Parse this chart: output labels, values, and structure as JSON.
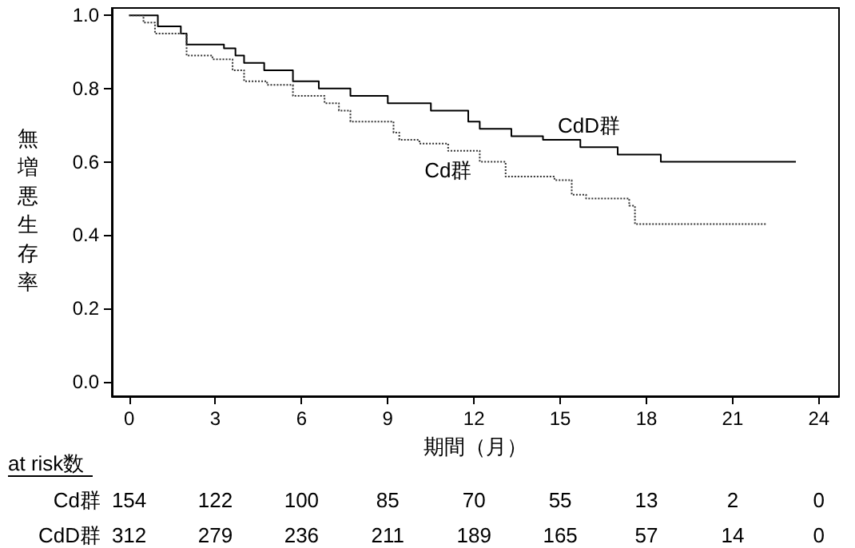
{
  "chart_data": {
    "type": "step",
    "xlabel": "期間（月）",
    "ylabel": "無増悪生存率",
    "xlim": [
      -0.6,
      24.7
    ],
    "ylim": [
      -0.04,
      1.02
    ],
    "xticks": [
      0,
      3,
      6,
      9,
      12,
      15,
      18,
      21,
      24
    ],
    "yticks": [
      {
        "value": 0,
        "label": "0.0"
      },
      {
        "value": 0.2,
        "label": "0.2"
      },
      {
        "value": 0.4,
        "label": "0.4"
      },
      {
        "value": 0.6,
        "label": "0.6"
      },
      {
        "value": 0.8,
        "label": "0.8"
      },
      {
        "value": 1,
        "label": "1.0"
      }
    ],
    "grid": false,
    "series": [
      {
        "name": "CdD群",
        "color": "#000000",
        "line_style": "solid",
        "x": [
          0,
          1,
          1.8,
          2,
          3.3,
          3.7,
          4,
          4.7,
          5.7,
          6.6,
          7.7,
          9,
          10.5,
          11.8,
          12.2,
          13.3,
          14.4,
          15.7,
          17,
          18.5,
          23.2
        ],
        "values": [
          1,
          0.97,
          0.95,
          0.92,
          0.91,
          0.89,
          0.87,
          0.85,
          0.82,
          0.8,
          0.78,
          0.76,
          0.74,
          0.71,
          0.69,
          0.67,
          0.66,
          0.64,
          0.62,
          0.6,
          0.6
        ]
      },
      {
        "name": "Cd群",
        "color": "#333333",
        "line_style": "dotted",
        "x": [
          0,
          0.5,
          0.9,
          2,
          2.9,
          3.6,
          4,
          4.8,
          5.7,
          6.8,
          7.3,
          7.7,
          9.2,
          9.4,
          10.1,
          11.1,
          12.2,
          13.1,
          14.8,
          15.4,
          15.9,
          17.4,
          17.6,
          22.2
        ],
        "values": [
          1,
          0.98,
          0.95,
          0.89,
          0.88,
          0.85,
          0.82,
          0.81,
          0.78,
          0.76,
          0.74,
          0.71,
          0.68,
          0.66,
          0.65,
          0.63,
          0.6,
          0.56,
          0.55,
          0.51,
          0.5,
          0.48,
          0.43,
          0.43
        ]
      }
    ],
    "annotations": [
      "at risk数",
      "Cd群",
      "154",
      "122",
      "100",
      "85",
      "70",
      "55",
      "13",
      "2",
      "0",
      "CdD群",
      "312",
      "279",
      "236",
      "211",
      "189",
      "165",
      "57",
      "14",
      "0"
    ]
  }
}
